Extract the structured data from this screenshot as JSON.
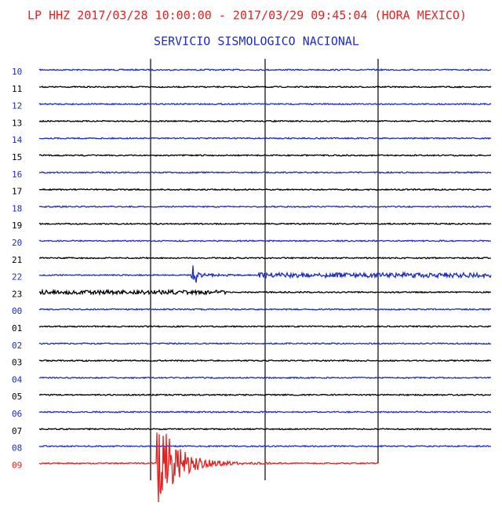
{
  "header": {
    "title": "LP HHZ 2017/03/28 10:00:00 - 2017/03/29 09:45:04 (HORA MEXICO)",
    "subtitle": "SERVICIO SISMOLOGICO NACIONAL"
  },
  "rows": [
    {
      "label": "10",
      "color": "#1c2cc4"
    },
    {
      "label": "11",
      "color": "#000000"
    },
    {
      "label": "12",
      "color": "#1c2cc4"
    },
    {
      "label": "13",
      "color": "#000000"
    },
    {
      "label": "14",
      "color": "#1c2cc4"
    },
    {
      "label": "15",
      "color": "#000000"
    },
    {
      "label": "16",
      "color": "#1c2cc4"
    },
    {
      "label": "17",
      "color": "#000000"
    },
    {
      "label": "18",
      "color": "#1c2cc4"
    },
    {
      "label": "19",
      "color": "#000000"
    },
    {
      "label": "20",
      "color": "#1c2cc4"
    },
    {
      "label": "21",
      "color": "#000000"
    },
    {
      "label": "22",
      "color": "#1c2cc4"
    },
    {
      "label": "23",
      "color": "#000000"
    },
    {
      "label": "00",
      "color": "#1c2cc4"
    },
    {
      "label": "01",
      "color": "#000000"
    },
    {
      "label": "02",
      "color": "#1c2cc4"
    },
    {
      "label": "03",
      "color": "#000000"
    },
    {
      "label": "04",
      "color": "#1c2cc4"
    },
    {
      "label": "05",
      "color": "#000000"
    },
    {
      "label": "06",
      "color": "#1c2cc4"
    },
    {
      "label": "07",
      "color": "#000000"
    },
    {
      "label": "08",
      "color": "#1c2cc4"
    },
    {
      "label": "09",
      "color": "#e8201e"
    }
  ]
}
